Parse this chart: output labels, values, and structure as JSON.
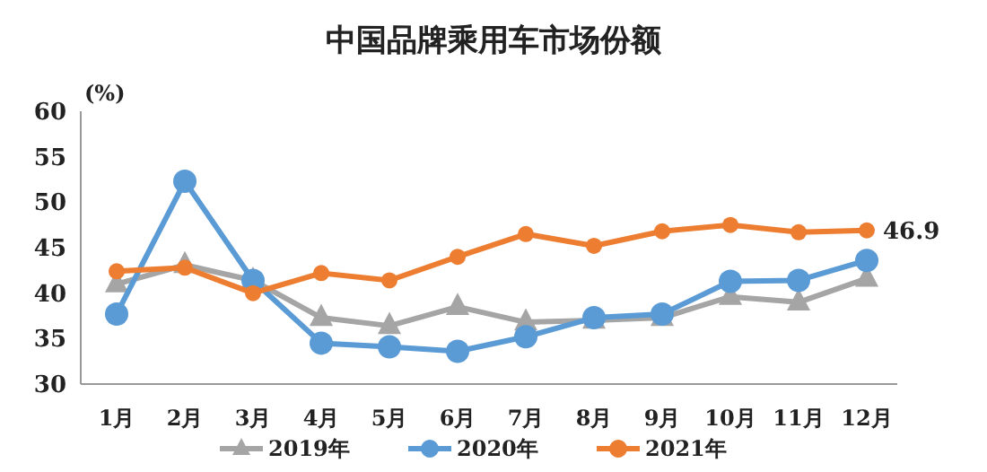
{
  "chart_data": {
    "type": "line",
    "title": "中国品牌乘用车市场份额",
    "ylabel": "(%)",
    "categories": [
      "1月",
      "2月",
      "3月",
      "4月",
      "5月",
      "6月",
      "7月",
      "8月",
      "9月",
      "10月",
      "11月",
      "12月"
    ],
    "series": [
      {
        "name": "2019年",
        "color": "#a5a5a5",
        "marker": "triangle",
        "values": [
          41.0,
          43.1,
          41.4,
          37.3,
          36.4,
          38.5,
          36.8,
          37.0,
          37.3,
          39.6,
          39.0,
          41.6
        ]
      },
      {
        "name": "2020年",
        "color": "#5b9bd5",
        "marker": "circle",
        "values": [
          37.7,
          52.3,
          41.4,
          34.5,
          34.1,
          33.6,
          35.2,
          37.3,
          37.7,
          41.3,
          41.4,
          43.6
        ]
      },
      {
        "name": "2021年",
        "color": "#ed7d31",
        "marker": "circle",
        "values": [
          42.4,
          42.8,
          40.0,
          42.2,
          41.4,
          44.0,
          46.5,
          45.2,
          46.8,
          47.5,
          46.7,
          46.9
        ]
      }
    ],
    "annotations": [
      {
        "text": "46.9",
        "x": "12月",
        "y": 46.9
      }
    ],
    "ylim": [
      30,
      60
    ],
    "yticks": [
      30,
      35,
      40,
      45,
      50,
      55,
      60
    ],
    "grid": false,
    "legend": "bottom",
    "line_style": "solid"
  }
}
